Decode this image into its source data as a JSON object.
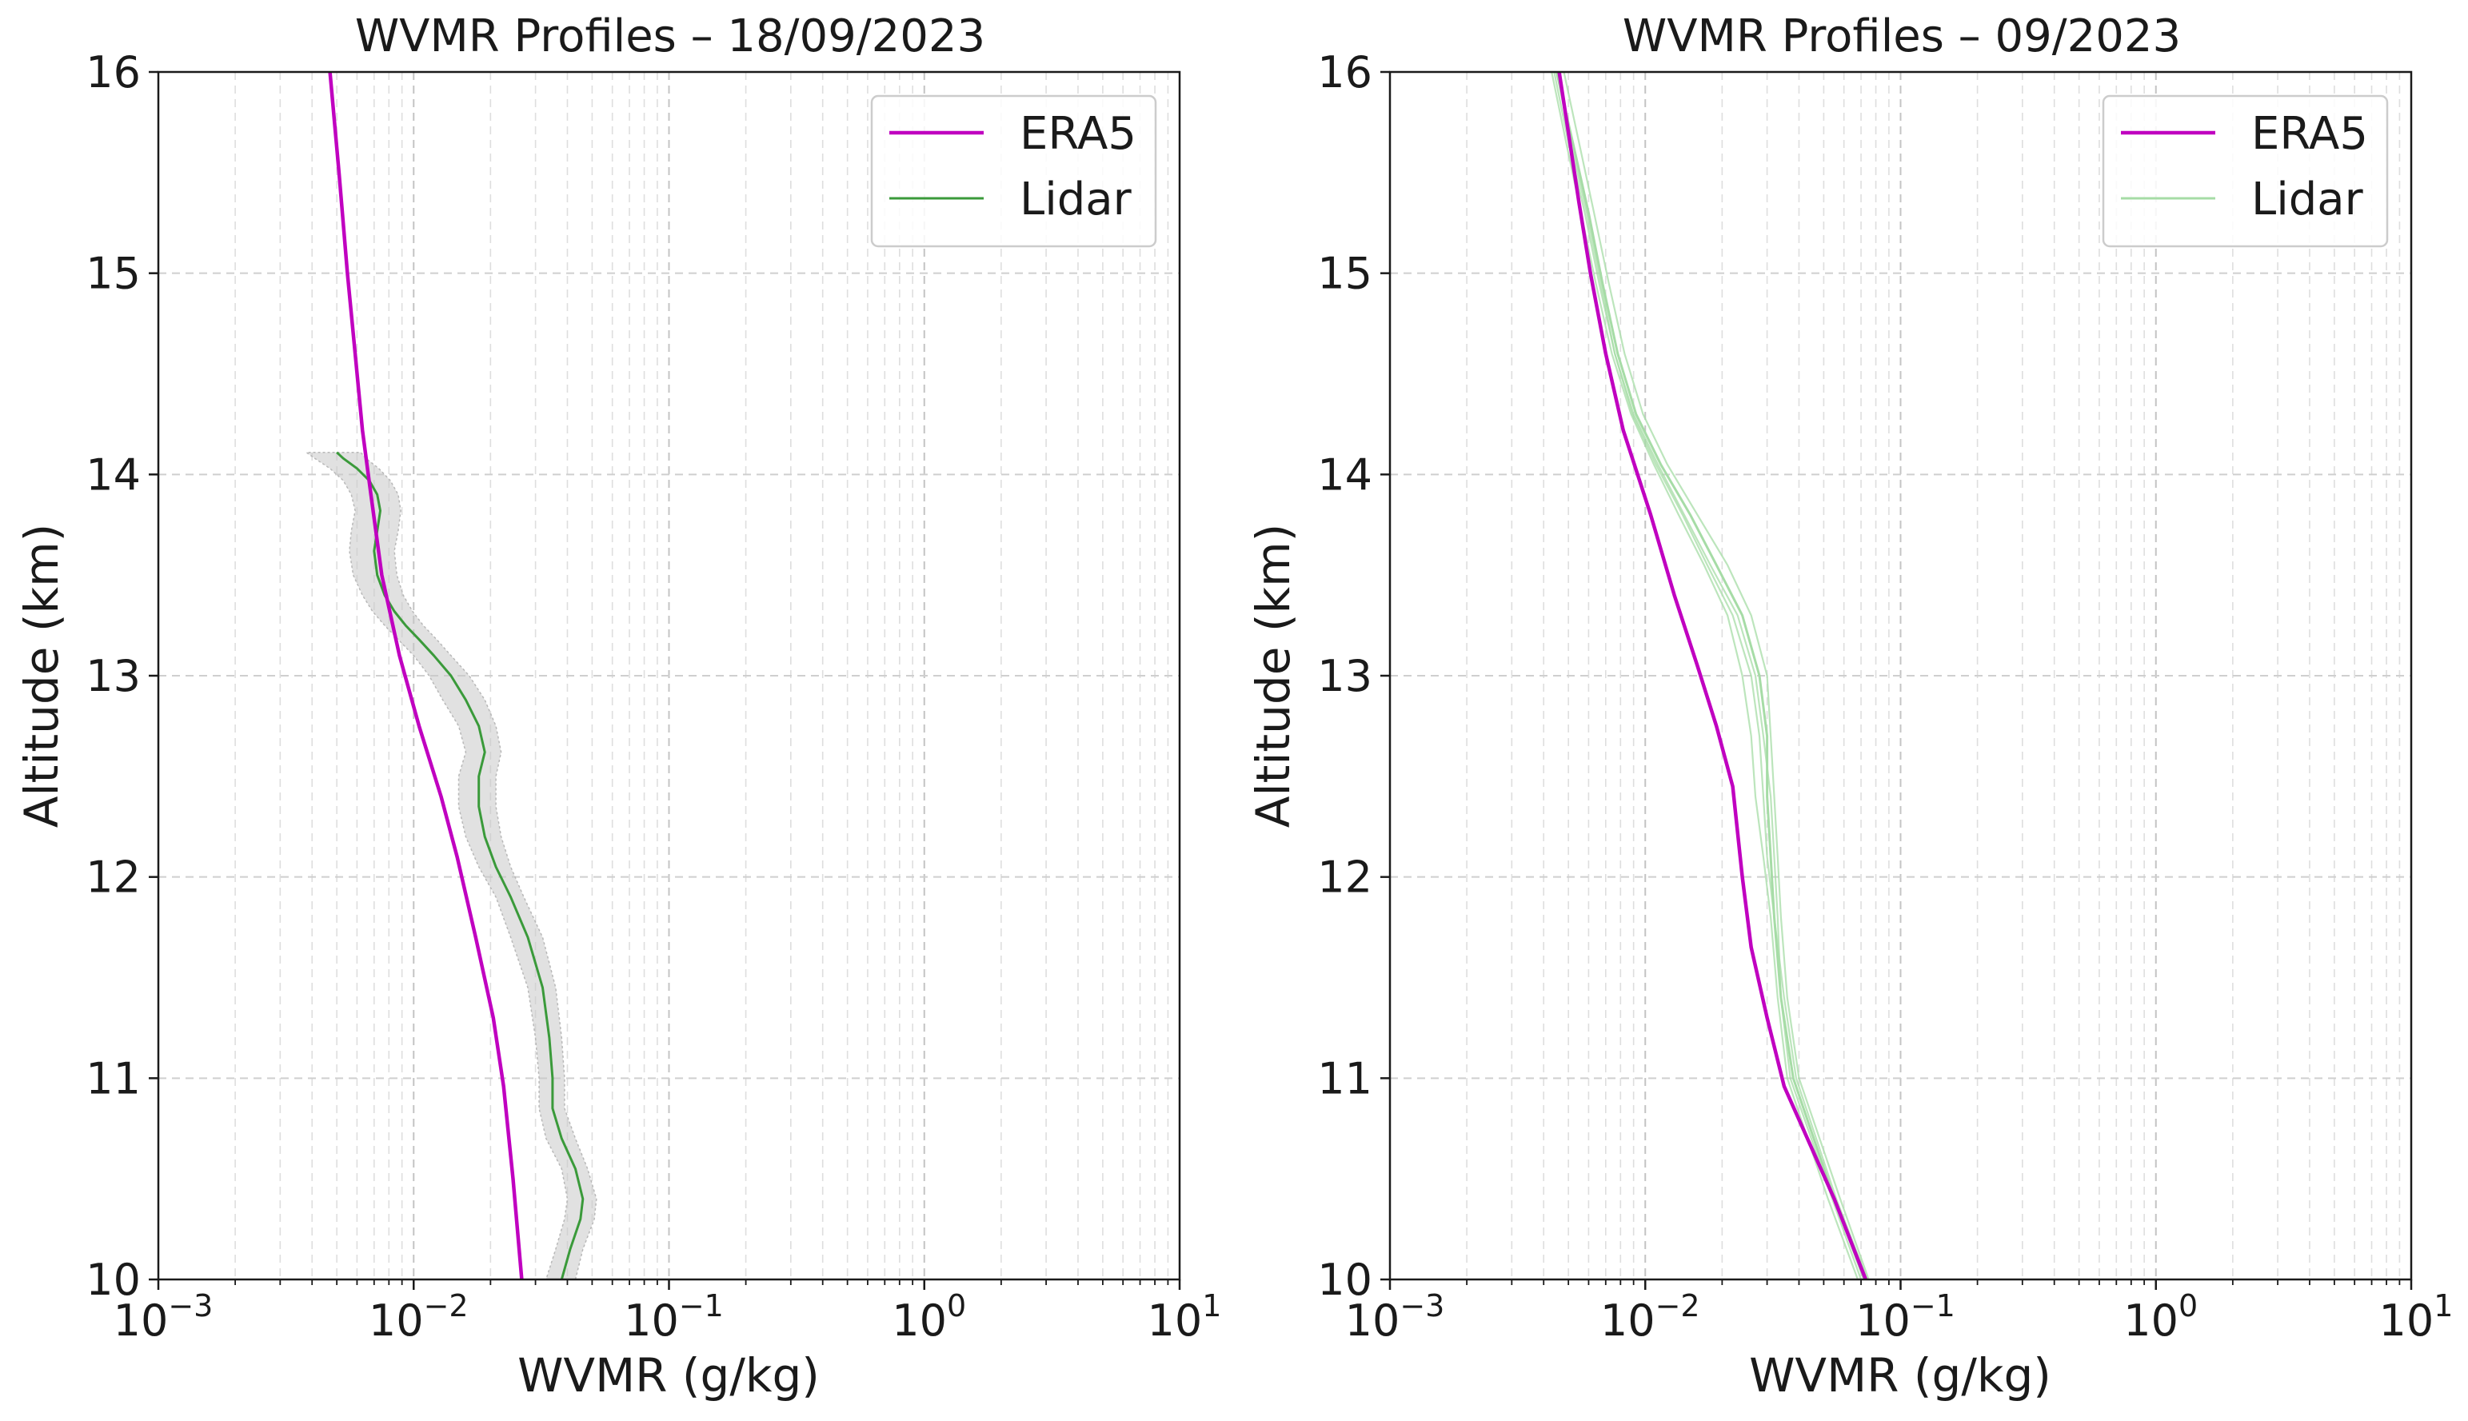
{
  "chart_data": [
    {
      "type": "line",
      "title": "WVMR Profiles – 18/09/2023",
      "xlabel": "WVMR (g/kg)",
      "ylabel": "Altitude (km)",
      "xscale": "log",
      "xlim": [
        0.001,
        10
      ],
      "ylim": [
        10,
        16
      ],
      "xticks": [
        0.001,
        0.01,
        0.1,
        1,
        10
      ],
      "xtick_labels": [
        {
          "base": "10",
          "exp": "−3"
        },
        {
          "base": "10",
          "exp": "−2"
        },
        {
          "base": "10",
          "exp": "−1"
        },
        {
          "base": "10",
          "exp": "0"
        },
        {
          "base": "10",
          "exp": "1"
        }
      ],
      "yticks": [
        10,
        11,
        12,
        13,
        14,
        15,
        16
      ],
      "ytick_labels": [
        "10",
        "11",
        "12",
        "13",
        "14",
        "15",
        "16"
      ],
      "grid": true,
      "legend": "top-right",
      "series": [
        {
          "name": "ERA5",
          "color": "#c000c0",
          "x": [
            0.0265,
            0.0245,
            0.0225,
            0.0205,
            0.0175,
            0.0148,
            0.0128,
            0.0105,
            0.0088,
            0.0075,
            0.0068,
            0.0063,
            0.0059,
            0.0055,
            0.0051,
            0.0047
          ],
          "y": [
            10.0,
            10.5,
            10.96,
            11.3,
            11.7,
            12.1,
            12.4,
            12.75,
            13.1,
            13.5,
            13.9,
            14.22,
            14.6,
            15.0,
            15.5,
            16.0
          ]
        },
        {
          "name": "Lidar",
          "color": "#3a9a3a",
          "band_color": "#c8c8c8",
          "x": [
            0.038,
            0.041,
            0.045,
            0.046,
            0.043,
            0.038,
            0.035,
            0.035,
            0.034,
            0.032,
            0.028,
            0.024,
            0.021,
            0.019,
            0.018,
            0.018,
            0.019,
            0.018,
            0.016,
            0.014,
            0.012,
            0.0105,
            0.0093,
            0.0084,
            0.0077,
            0.0072,
            0.007,
            0.0072,
            0.0074,
            0.0072,
            0.0067,
            0.006,
            0.0053,
            0.005
          ],
          "y": [
            10.0,
            10.15,
            10.3,
            10.4,
            10.55,
            10.7,
            10.85,
            11.0,
            11.2,
            11.45,
            11.7,
            11.9,
            12.05,
            12.2,
            12.35,
            12.5,
            12.62,
            12.75,
            12.88,
            13.0,
            13.1,
            13.18,
            13.25,
            13.32,
            13.4,
            13.5,
            13.62,
            13.72,
            13.82,
            13.9,
            13.97,
            14.03,
            14.08,
            14.11
          ],
          "uncertainty": [
            0.005,
            0.005,
            0.006,
            0.006,
            0.005,
            0.005,
            0.004,
            0.004,
            0.004,
            0.004,
            0.004,
            0.003,
            0.003,
            0.003,
            0.003,
            0.003,
            0.003,
            0.003,
            0.003,
            0.0025,
            0.002,
            0.0018,
            0.0016,
            0.0015,
            0.0014,
            0.0014,
            0.0014,
            0.0015,
            0.0015,
            0.0015,
            0.0014,
            0.0013,
            0.0012,
            0.0012
          ]
        }
      ]
    },
    {
      "type": "line",
      "title": "WVMR Profiles – 09/2023",
      "xlabel": "WVMR (g/kg)",
      "ylabel": "Altitude (km)",
      "xscale": "log",
      "xlim": [
        0.001,
        10
      ],
      "ylim": [
        10,
        16
      ],
      "xticks": [
        0.001,
        0.01,
        0.1,
        1,
        10
      ],
      "xtick_labels": [
        {
          "base": "10",
          "exp": "−3"
        },
        {
          "base": "10",
          "exp": "−2"
        },
        {
          "base": "10",
          "exp": "−1"
        },
        {
          "base": "10",
          "exp": "0"
        },
        {
          "base": "10",
          "exp": "1"
        }
      ],
      "yticks": [
        10,
        11,
        12,
        13,
        14,
        15,
        16
      ],
      "ytick_labels": [
        "10",
        "11",
        "12",
        "13",
        "14",
        "15",
        "16"
      ],
      "grid": true,
      "legend": "top-right",
      "series": [
        {
          "name": "ERA5",
          "color": "#c000c0",
          "x": [
            0.073,
            0.055,
            0.035,
            0.03,
            0.026,
            0.024,
            0.022,
            0.019,
            0.016,
            0.013,
            0.0105,
            0.0082,
            0.007,
            0.0061,
            0.0055,
            0.005,
            0.0046
          ],
          "y": [
            10.0,
            10.4,
            10.96,
            11.3,
            11.65,
            12.0,
            12.45,
            12.75,
            13.05,
            13.4,
            13.8,
            14.22,
            14.6,
            15.0,
            15.35,
            15.7,
            16.0
          ],
          "style": "solid"
        },
        {
          "name": "Lidar",
          "color": "#a6dca6",
          "x": [
            0.072,
            0.055,
            0.038,
            0.034,
            0.032,
            0.031,
            0.03,
            0.03,
            0.028,
            0.024,
            0.019,
            0.015,
            0.0115,
            0.0092,
            0.0078,
            0.0068,
            0.006,
            0.0052,
            0.0045
          ],
          "y": [
            10.0,
            10.4,
            11.0,
            11.4,
            11.8,
            12.1,
            12.4,
            12.7,
            13.0,
            13.3,
            13.55,
            13.8,
            14.05,
            14.3,
            14.6,
            14.95,
            15.3,
            15.65,
            16.0
          ],
          "extra_profiles": [
            {
              "x": [
                0.068,
                0.052,
                0.036,
                0.033,
                0.031,
                0.029,
                0.027,
                0.026,
                0.024,
                0.021,
                0.017,
                0.0135,
                0.0108,
                0.0088,
                0.0074,
                0.0064,
                0.0056,
                0.0049,
                0.0043
              ],
              "y": [
                10.0,
                10.4,
                11.0,
                11.4,
                11.8,
                12.1,
                12.4,
                12.7,
                13.0,
                13.3,
                13.55,
                13.8,
                14.05,
                14.3,
                14.6,
                14.95,
                15.3,
                15.65,
                16.0
              ]
            },
            {
              "x": [
                0.075,
                0.058,
                0.04,
                0.036,
                0.034,
                0.033,
                0.032,
                0.031,
                0.03,
                0.026,
                0.021,
                0.016,
                0.0122,
                0.0098,
                0.0083,
                0.0072,
                0.0063,
                0.0055,
                0.0048
              ],
              "y": [
                10.0,
                10.4,
                11.0,
                11.4,
                11.8,
                12.1,
                12.4,
                12.7,
                13.0,
                13.3,
                13.55,
                13.8,
                14.05,
                14.3,
                14.6,
                14.95,
                15.3,
                15.65,
                16.0
              ]
            },
            {
              "x": [
                0.07,
                0.054,
                0.037,
                0.034,
                0.033,
                0.032,
                0.031,
                0.029,
                0.027,
                0.023,
                0.018,
                0.0142,
                0.0112,
                0.009,
                0.0076,
                0.0066,
                0.0058,
                0.005,
                0.0044
              ],
              "y": [
                10.0,
                10.4,
                11.0,
                11.4,
                11.8,
                12.1,
                12.4,
                12.7,
                13.0,
                13.3,
                13.55,
                13.8,
                14.05,
                14.3,
                14.6,
                14.95,
                15.3,
                15.65,
                16.0
              ]
            },
            {
              "x": [
                0.074,
                0.056,
                0.039,
                0.035,
                0.032,
                0.03,
                0.029,
                0.028,
                0.026,
                0.022,
                0.0175,
                0.014,
                0.011,
                0.0089,
                0.0076,
                0.0067,
                0.0059,
                0.0051,
                0.0045
              ],
              "y": [
                10.0,
                10.4,
                11.0,
                11.4,
                11.8,
                12.1,
                12.4,
                12.7,
                13.0,
                13.3,
                13.55,
                13.8,
                14.05,
                14.3,
                14.6,
                14.95,
                15.3,
                15.65,
                16.0
              ]
            }
          ]
        }
      ]
    }
  ]
}
